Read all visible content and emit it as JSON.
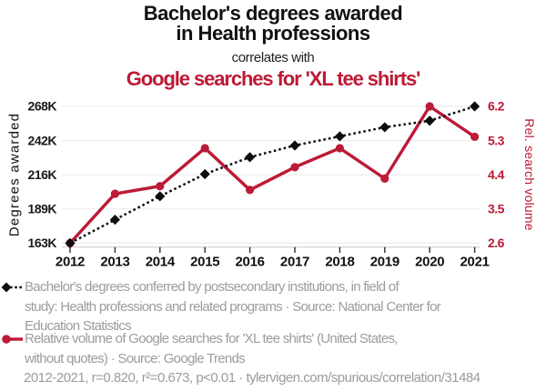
{
  "header": {
    "title": "Bachelor's degrees awarded\nin Health professions",
    "subtitle": "correlates with",
    "correlate_title": "Google searches for 'XL tee shirts'"
  },
  "colors": {
    "accent_red": "#bc1a36",
    "series_black": "#0d0d0d",
    "legend_gray": "#9c9c9c",
    "gridline": "#eaeaea",
    "axis_line": "#c8c8c8",
    "tick_mark": "#2a2a2a",
    "year_label": "#111111",
    "left_tick_label": "#1a1a1a"
  },
  "chart_data": {
    "type": "line",
    "categories": [
      "2012",
      "2013",
      "2014",
      "2015",
      "2016",
      "2017",
      "2018",
      "2019",
      "2020",
      "2021"
    ],
    "series": [
      {
        "name": "Bachelor's degrees awarded in Health professions",
        "axis": "left",
        "line_style": "dashed",
        "marker": "diamond",
        "color": "#0d0d0d",
        "values": [
          163000,
          181000,
          199000,
          216000,
          229000,
          238000,
          245000,
          252000,
          257000,
          268000
        ]
      },
      {
        "name": "Relative volume of Google searches for 'XL tee shirts'",
        "axis": "right",
        "line_style": "solid",
        "marker": "circle",
        "color": "#bc1a36",
        "values": [
          2.6,
          3.9,
          4.1,
          5.1,
          4.0,
          4.6,
          5.1,
          4.3,
          6.2,
          5.4
        ]
      }
    ],
    "left_axis": {
      "label": "Degrees awarded",
      "tick_labels": [
        "163K",
        "189K",
        "216K",
        "242K",
        "268K"
      ],
      "range": [
        163000,
        268000
      ]
    },
    "right_axis": {
      "label": "Rel. search volume",
      "tick_labels": [
        "2.6",
        "3.5",
        "4.4",
        "5.3",
        "6.2"
      ],
      "range": [
        2.6,
        6.2
      ]
    },
    "grid": true,
    "legend_position": "bottom",
    "xlabel": "",
    "ylabel": "Degrees awarded"
  },
  "legend": {
    "items": [
      {
        "marker": "black-diamond-dashed",
        "text": "Bachelor's degrees conferred by postsecondary institutions, in field of\nstudy: Health professions and related programs · Source: National Center for\nEducation Statistics"
      },
      {
        "marker": "red-circle-line",
        "text": "Relative volume of Google searches for 'XL tee shirts' (United States,\nwithout quotes) · Source: Google Trends"
      }
    ]
  },
  "footer": {
    "stats_line": "2012-2021, r=0.820, r²=0.673, p<0.01 · tylervigen.com/spurious/correlation/31484"
  }
}
